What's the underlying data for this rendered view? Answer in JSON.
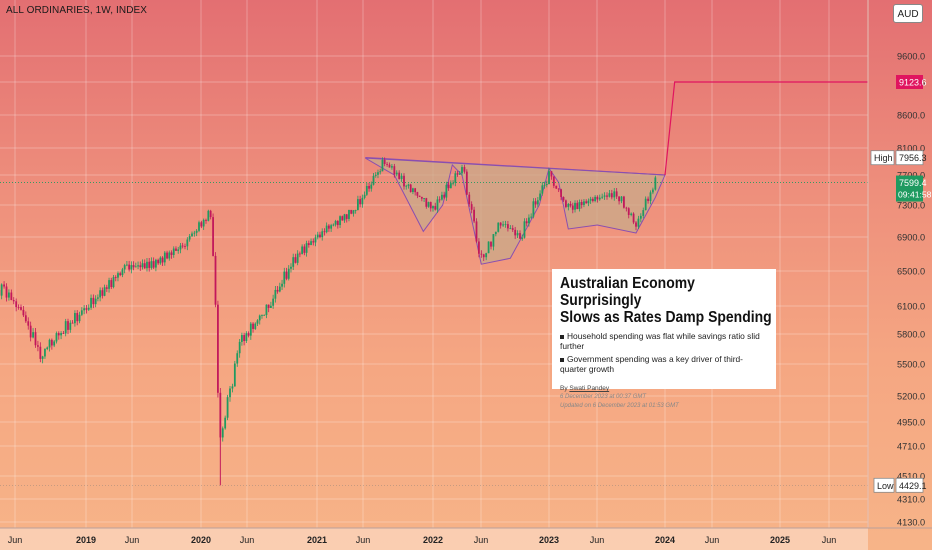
{
  "header": {
    "title": "ALL ORDINARIES, 1W, INDEX",
    "currency": "AUD"
  },
  "colors": {
    "up": "#1f9a60",
    "down": "#c2185b",
    "pattern_fill": "#c9a98a",
    "pattern_line": "#8a4fb0",
    "target": "#e0145f",
    "price_badge": "#1f9a60"
  },
  "chart_data": {
    "type": "candlestick",
    "title": "ALL ORDINARIES, 1W, INDEX",
    "y_ticks": [
      9600.0,
      9123.6,
      8600.0,
      8100.0,
      7700.0,
      7300.0,
      6900.0,
      6500.0,
      6100.0,
      5800.0,
      5500.0,
      5200.0,
      4950.0,
      4710.0,
      4510.0,
      4310.0,
      4130.0
    ],
    "x_labels": [
      "Jun",
      "2019",
      "Jun",
      "2020",
      "Jun",
      "2021",
      "Jun",
      "2022",
      "Jun",
      "2023",
      "Jun",
      "2024",
      "Jun",
      "2025",
      "Jun"
    ],
    "price_markers": {
      "target": {
        "value": 9123.6,
        "label": "9123.6"
      },
      "high": {
        "label": "High",
        "value": 7956.3
      },
      "last": {
        "value": 7599.4,
        "countdown": "09:41:58"
      },
      "low": {
        "label": "Low",
        "value": 4429.1
      }
    },
    "approx_closes": [
      {
        "x": "2018-06",
        "y": 5950
      },
      {
        "x": "2018-08",
        "y": 6320
      },
      {
        "x": "2018-10",
        "y": 6040
      },
      {
        "x": "2018-12",
        "y": 5600
      },
      {
        "x": "2019-02",
        "y": 6180
      },
      {
        "x": "2019-05",
        "y": 6540
      },
      {
        "x": "2019-08",
        "y": 6580
      },
      {
        "x": "2019-11",
        "y": 6800
      },
      {
        "x": "2020-02",
        "y": 7200
      },
      {
        "x": "2020-03",
        "y": 4800
      },
      {
        "x": "2020-05",
        "y": 5700
      },
      {
        "x": "2020-08",
        "y": 6100
      },
      {
        "x": "2020-11",
        "y": 6700
      },
      {
        "x": "2021-02",
        "y": 7000
      },
      {
        "x": "2021-05",
        "y": 7250
      },
      {
        "x": "2021-08",
        "y": 7900
      },
      {
        "x": "2021-10",
        "y": 7600
      },
      {
        "x": "2022-01",
        "y": 7250
      },
      {
        "x": "2022-04",
        "y": 7800
      },
      {
        "x": "2022-06",
        "y": 6600
      },
      {
        "x": "2022-08",
        "y": 7100
      },
      {
        "x": "2022-10",
        "y": 6900
      },
      {
        "x": "2023-01",
        "y": 7700
      },
      {
        "x": "2023-03",
        "y": 7250
      },
      {
        "x": "2023-06",
        "y": 7400
      },
      {
        "x": "2023-08",
        "y": 7450
      },
      {
        "x": "2023-10",
        "y": 7050
      },
      {
        "x": "2023-12",
        "y": 7599.4
      }
    ]
  },
  "news": {
    "headline_line1": "Australian Economy Surprisingly",
    "headline_line2": "Slows as Rates Damp Spending",
    "bullet1": "Household spending was flat while savings ratio slid further",
    "bullet2": "Government spending was a key driver of third-quarter growth",
    "by_prefix": "By ",
    "author": "Swati Pandey",
    "published": "6 December 2023 at 00:37 GMT",
    "updated": "Updated on 6 December 2023 at 01:53 GMT"
  }
}
